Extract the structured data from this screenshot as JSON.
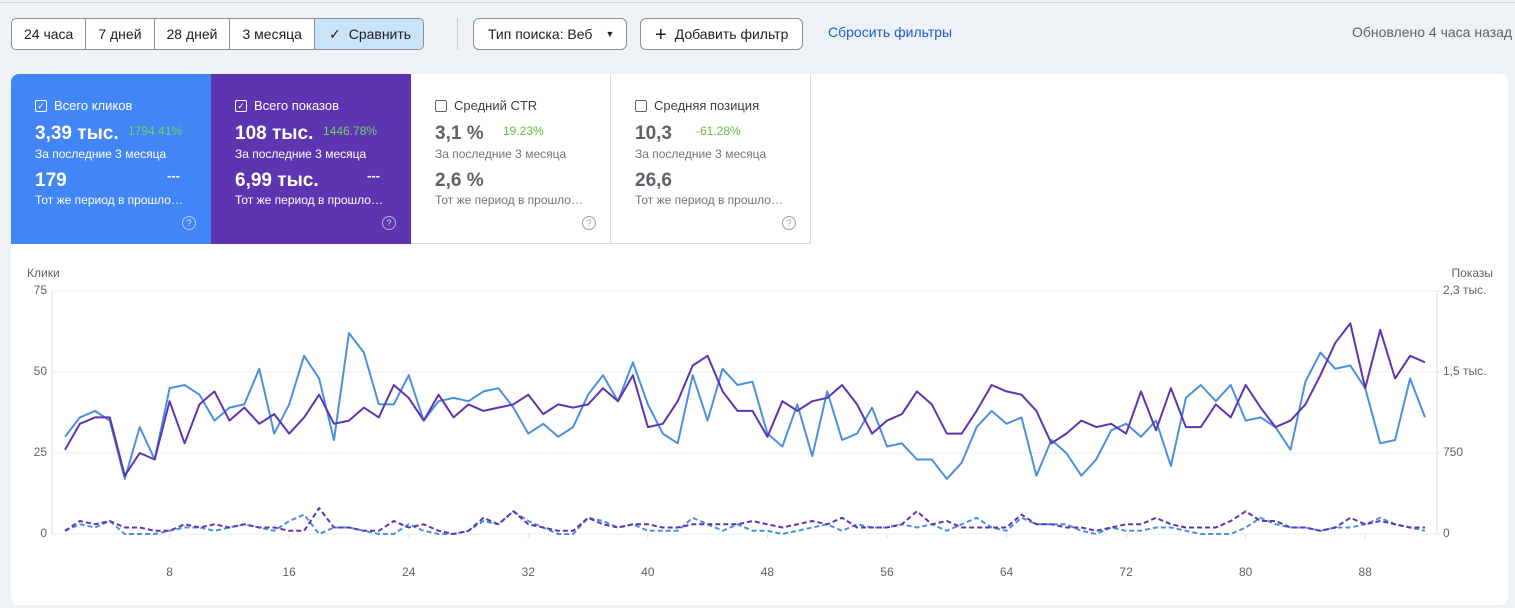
{
  "toolbar": {
    "periods": [
      "24 часа",
      "7 дней",
      "28 дней",
      "3 месяца"
    ],
    "compare": "Сравнить",
    "search_type": "Тип поиска: Веб",
    "add_filter": "Добавить фильтр",
    "reset_filters": "Сбросить фильтры",
    "updated": "Обновлено 4 часа назад"
  },
  "cards": [
    {
      "label": "Всего кликов",
      "selected": true,
      "color": "#4285f4",
      "value": "3,39 тыс.",
      "change": "1794.41%",
      "period": "За последние 3 месяца",
      "prev_value": "179",
      "prev_change": "---",
      "prev_period": "Тот же период в прошлом году"
    },
    {
      "label": "Всего показов",
      "selected": true,
      "color": "#5e35b1",
      "value": "108 тыс.",
      "change": "1446.78%",
      "period": "За последние 3 месяца",
      "prev_value": "6,99 тыс.",
      "prev_change": "---",
      "prev_period": "Тот же период в прошлом году"
    },
    {
      "label": "Средний CTR",
      "selected": false,
      "color": "#ffffff",
      "value": "3,1 %",
      "change": "19.23%",
      "period": "За последние 3 месяца",
      "prev_value": "2,6 %",
      "prev_change": "",
      "prev_period": "Тот же период в прошлом году"
    },
    {
      "label": "Средняя позиция",
      "selected": false,
      "color": "#ffffff",
      "value": "10,3",
      "change": "-61.28%",
      "period": "За последние 3 месяца",
      "prev_value": "26,6",
      "prev_change": "",
      "prev_period": "Тот же период в прошлом году"
    }
  ],
  "chart_data": {
    "type": "line",
    "y_title": "Клики",
    "y2_title": "Показы",
    "x": [
      1,
      2,
      3,
      4,
      5,
      6,
      7,
      8,
      9,
      10,
      11,
      12,
      13,
      14,
      15,
      16,
      17,
      18,
      19,
      20,
      21,
      22,
      23,
      24,
      25,
      26,
      27,
      28,
      29,
      30,
      31,
      32,
      33,
      34,
      35,
      36,
      37,
      38,
      39,
      40,
      41,
      42,
      43,
      44,
      45,
      46,
      47,
      48,
      49,
      50,
      51,
      52,
      53,
      54,
      55,
      56,
      57,
      58,
      59,
      60,
      61,
      62,
      63,
      64,
      65,
      66,
      67,
      68,
      69,
      70,
      71,
      72,
      73,
      74,
      75,
      76,
      77,
      78,
      79,
      80,
      81,
      82,
      83,
      84,
      85,
      86,
      87,
      88,
      89,
      90,
      91,
      92
    ],
    "xlim": [
      1,
      92
    ],
    "xticks": [
      8,
      16,
      24,
      32,
      40,
      48,
      56,
      64,
      72,
      80,
      88
    ],
    "ylim": [
      0,
      75
    ],
    "yticks": [
      0,
      25,
      50,
      75
    ],
    "y2lim": [
      0,
      2250
    ],
    "y2ticks": [
      0,
      750,
      {
        "value": 1500,
        "label": "1,5 тыс."
      },
      {
        "value": 2250,
        "label": "2,3 тыс."
      }
    ],
    "grid": true,
    "series": [
      {
        "color": "#4a90e2",
        "dashed": false,
        "values": [
          30,
          36,
          38,
          35,
          17,
          33,
          23,
          45,
          46,
          43,
          35,
          39,
          40,
          51,
          31,
          40,
          55,
          48,
          29,
          62,
          56,
          40,
          40,
          49,
          35,
          41,
          42,
          41,
          44,
          45,
          39,
          31,
          34,
          30,
          33,
          43,
          49,
          41,
          53,
          40,
          31,
          28,
          49,
          35,
          51,
          46,
          47,
          31,
          27,
          40,
          24,
          44,
          29,
          31,
          39,
          27,
          28,
          23,
          23,
          17,
          22,
          33,
          38,
          34,
          36,
          18,
          29,
          25,
          18,
          23,
          32,
          34,
          30,
          35,
          21,
          42,
          46,
          41,
          46,
          35,
          36,
          33,
          26,
          47,
          56,
          51,
          52,
          45,
          28,
          29,
          48,
          36
        ]
      },
      {
        "color": "#5e35b1",
        "dashed": false,
        "axis": "y2",
        "values": [
          780,
          1020,
          1080,
          1080,
          540,
          750,
          690,
          1230,
          840,
          1200,
          1320,
          1050,
          1170,
          1020,
          1110,
          930,
          1080,
          1290,
          1020,
          1050,
          1170,
          1080,
          1380,
          1260,
          1050,
          1290,
          1080,
          1200,
          1140,
          1170,
          1200,
          1290,
          1110,
          1200,
          1170,
          1200,
          1350,
          1230,
          1470,
          990,
          1020,
          1230,
          1560,
          1650,
          1320,
          1140,
          1140,
          900,
          1230,
          1140,
          1230,
          1260,
          1380,
          1200,
          930,
          1050,
          1110,
          1320,
          1200,
          930,
          930,
          1140,
          1380,
          1320,
          1290,
          1140,
          840,
          930,
          1050,
          990,
          1020,
          930,
          1320,
          960,
          1350,
          990,
          990,
          1200,
          1080,
          1380,
          1170,
          990,
          1050,
          1200,
          1470,
          1770,
          1950,
          1350,
          1890,
          1440,
          1650,
          1590
        ]
      },
      {
        "color": "#4a90e2",
        "dashed": true,
        "values": [
          1,
          3,
          2,
          4,
          0,
          0,
          0,
          1,
          2,
          2,
          1,
          2,
          3,
          2,
          1,
          4,
          6,
          0,
          2,
          2,
          1,
          0,
          0,
          3,
          1,
          0,
          0,
          1,
          4,
          3,
          7,
          4,
          2,
          0,
          0,
          5,
          4,
          2,
          3,
          1,
          1,
          1,
          5,
          3,
          1,
          3,
          1,
          1,
          0,
          1,
          2,
          3,
          1,
          3,
          2,
          2,
          3,
          2,
          3,
          1,
          3,
          5,
          2,
          1,
          5,
          3,
          3,
          3,
          1,
          0,
          2,
          1,
          1,
          2,
          2,
          1,
          0,
          0,
          0,
          2,
          5,
          3,
          2,
          2,
          1,
          2,
          2,
          3,
          5,
          3,
          2,
          1
        ]
      },
      {
        "color": "#5e35b1",
        "dashed": true,
        "axis": "y2",
        "values": [
          30,
          120,
          90,
          120,
          60,
          60,
          30,
          30,
          90,
          60,
          90,
          60,
          90,
          60,
          60,
          30,
          30,
          240,
          60,
          60,
          30,
          30,
          120,
          60,
          90,
          30,
          0,
          30,
          150,
          90,
          210,
          90,
          60,
          30,
          30,
          150,
          90,
          60,
          90,
          90,
          60,
          60,
          90,
          90,
          90,
          90,
          120,
          90,
          60,
          90,
          120,
          90,
          150,
          60,
          60,
          60,
          90,
          210,
          90,
          120,
          60,
          60,
          60,
          60,
          180,
          90,
          90,
          60,
          60,
          30,
          60,
          90,
          90,
          150,
          90,
          60,
          60,
          60,
          120,
          210,
          120,
          120,
          60,
          60,
          30,
          60,
          150,
          90,
          120,
          90,
          60,
          60
        ]
      }
    ]
  }
}
